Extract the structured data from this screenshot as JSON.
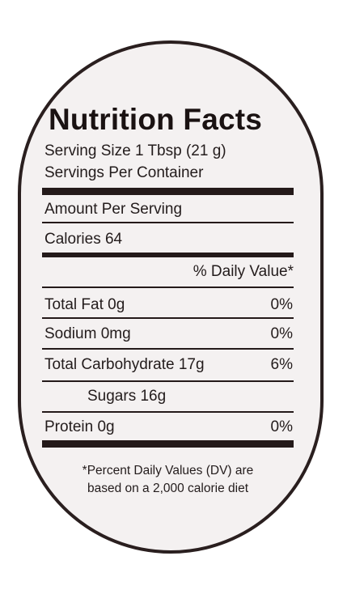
{
  "label": {
    "title": "Nutrition Facts",
    "serving_size": "Serving Size 1 Tbsp (21 g)",
    "servings_per_container": "Servings Per Container",
    "amount_per_serving": "Amount Per Serving",
    "calories": "Calories 64",
    "daily_value_header": "% Daily Value*",
    "nutrients": [
      {
        "name": "Total Fat 0g",
        "pct": "0%"
      },
      {
        "name": "Sodium 0mg",
        "pct": "0%"
      },
      {
        "name": "Total Carbohydrate 17g",
        "pct": "6%"
      },
      {
        "name": "Sugars 16g",
        "pct": ""
      },
      {
        "name": "Protein 0g",
        "pct": "0%"
      }
    ],
    "footnote_line1": "*Percent Daily Values (DV) are",
    "footnote_line2": "based on a 2,000 calorie diet"
  },
  "colors": {
    "ink": "#231c1c",
    "border": "#2a1f1f",
    "background": "#f4f1f1"
  }
}
